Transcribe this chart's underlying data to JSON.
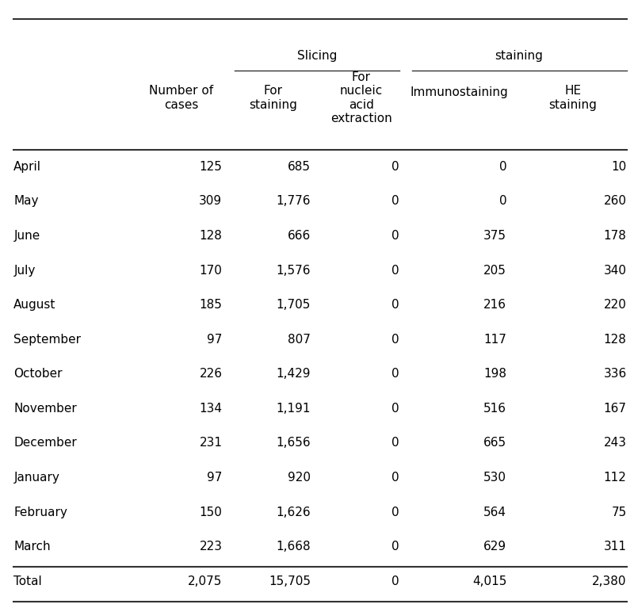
{
  "col_headers": [
    "Number of\ncases",
    "For\nstaining",
    "For\nnucleic\nacid\nextraction",
    "Immunostaining",
    "HE\nstaining"
  ],
  "row_labels": [
    "April",
    "May",
    "June",
    "July",
    "August",
    "September",
    "October",
    "November",
    "December",
    "January",
    "February",
    "March",
    "Total"
  ],
  "data_formatted": [
    [
      "125",
      "685",
      "0",
      "0",
      "10"
    ],
    [
      "309",
      "1,776",
      "0",
      "0",
      "260"
    ],
    [
      "128",
      "666",
      "0",
      "375",
      "178"
    ],
    [
      "170",
      "1,576",
      "0",
      "205",
      "340"
    ],
    [
      "185",
      "1,705",
      "0",
      "216",
      "220"
    ],
    [
      "97",
      "807",
      "0",
      "117",
      "128"
    ],
    [
      "226",
      "1,429",
      "0",
      "198",
      "336"
    ],
    [
      "134",
      "1,191",
      "0",
      "516",
      "167"
    ],
    [
      "231",
      "1,656",
      "0",
      "665",
      "243"
    ],
    [
      "97",
      "920",
      "0",
      "530",
      "112"
    ],
    [
      "150",
      "1,626",
      "0",
      "564",
      "75"
    ],
    [
      "223",
      "1,668",
      "0",
      "629",
      "311"
    ],
    [
      "2,075",
      "15,705",
      "0",
      "4,015",
      "2,380"
    ]
  ],
  "background_color": "#ffffff",
  "text_color": "#000000",
  "line_color": "#333333",
  "font_size": 11,
  "header_font_size": 11,
  "slicing_label": "Slicing",
  "staining_label": "staining",
  "number_of_cases_label": "Number of\ncases"
}
